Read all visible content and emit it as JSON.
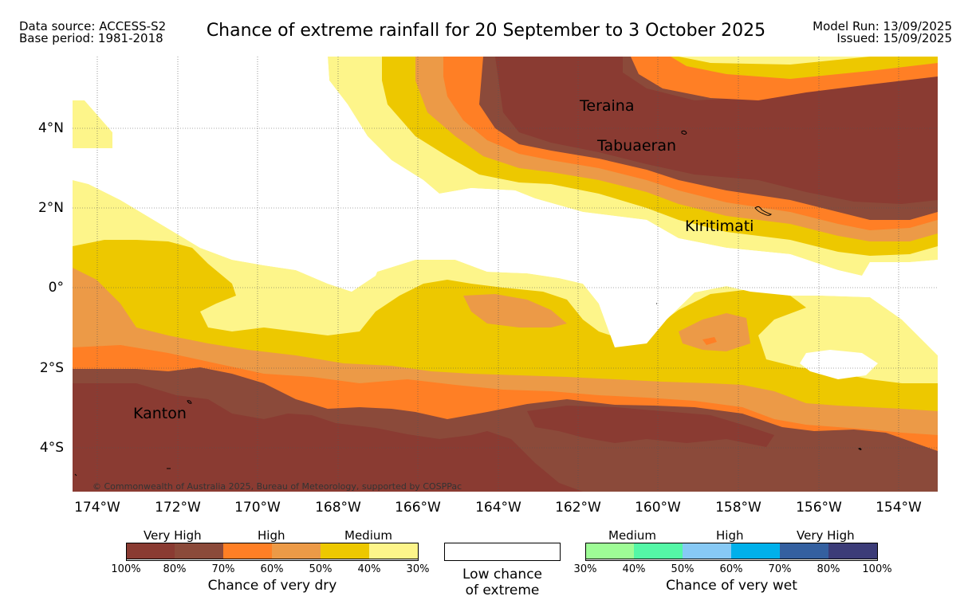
{
  "header": {
    "data_source": "Data source: ACCESS-S2",
    "base_period": "Base period: 1981-2018",
    "title": "Chance of extreme rainfall for 20 September to 3 October 2025",
    "model_run": "Model Run: 13/09/2025",
    "issued": "Issued: 15/09/2025"
  },
  "map": {
    "lat_labels": [
      "4°N",
      "2°N",
      "0°",
      "2°S",
      "4°S"
    ],
    "lon_labels": [
      "174°W",
      "172°W",
      "170°W",
      "168°W",
      "166°W",
      "164°W",
      "162°W",
      "160°W",
      "158°W",
      "156°W",
      "154°W"
    ],
    "places": [
      "Teraina",
      "Tabuaeran",
      "Kiritimati",
      "Kanton"
    ],
    "copyright": "© Commonwealth of Australia 2025, Bureau of Meteorology, supported by COSPPac"
  },
  "legend": {
    "dry": {
      "categories": [
        "Very High",
        "High",
        "Medium"
      ],
      "ticks": [
        "100%",
        "80%",
        "70%",
        "60%",
        "50%",
        "40%",
        "30%"
      ],
      "colors": [
        "#8a3b32",
        "#8b4a3a",
        "#ff7f25",
        "#ec9a47",
        "#edc800",
        "#fdf58a"
      ],
      "title": "Chance of very dry"
    },
    "low": {
      "line1": "Low chance",
      "line2": "of extreme"
    },
    "wet": {
      "categories": [
        "Medium",
        "High",
        "Very High"
      ],
      "ticks": [
        "30%",
        "40%",
        "50%",
        "60%",
        "70%",
        "80%",
        "100%"
      ],
      "colors": [
        "#9efc96",
        "#54f7a6",
        "#87c9f5",
        "#00b0ea",
        "#3460a0",
        "#3c3c78"
      ],
      "title": "Chance of very wet"
    }
  }
}
